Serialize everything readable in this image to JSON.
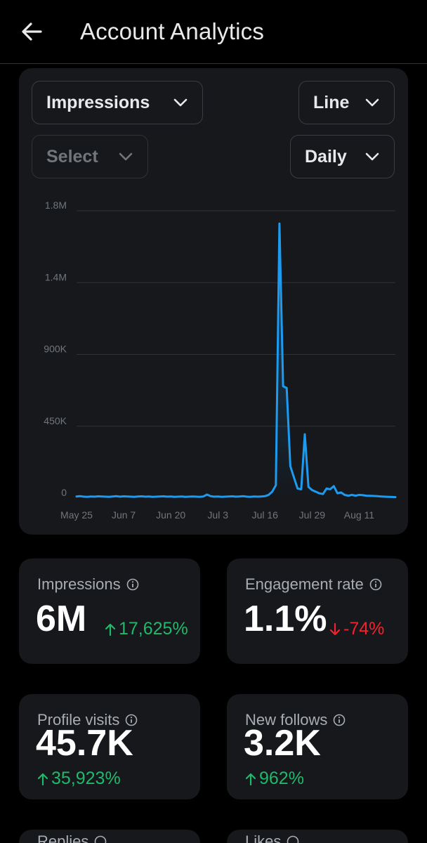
{
  "header": {
    "title": "Account Analytics",
    "back_icon": "arrow-left-icon"
  },
  "controls": {
    "metric": {
      "value": "Impressions"
    },
    "chart_type": {
      "value": "Line"
    },
    "compare": {
      "placeholder": "Select"
    },
    "interval": {
      "value": "Daily"
    }
  },
  "colors": {
    "line": "#1d9bf0",
    "positive": "#20b96a",
    "negative": "#f4212e",
    "card": "#16181c"
  },
  "chart_data": {
    "type": "line",
    "x_tick_labels": [
      "May 25",
      "Jun 7",
      "Jun 20",
      "Jul 3",
      "Jul 16",
      "Jul 29",
      "Aug 11"
    ],
    "y_tick_labels": [
      "1.8M",
      "1.4M",
      "900K",
      "450K",
      "0"
    ],
    "ylim": [
      0,
      1800000
    ],
    "grid": true,
    "series": [
      {
        "x": [
          "May 25",
          "May 26",
          "May 27",
          "May 28",
          "May 29",
          "May 30",
          "May 31",
          "Jun 1",
          "Jun 2",
          "Jun 3",
          "Jun 4",
          "Jun 5",
          "Jun 6",
          "Jun 7",
          "Jun 8",
          "Jun 9",
          "Jun 10",
          "Jun 11",
          "Jun 12",
          "Jun 13",
          "Jun 14",
          "Jun 15",
          "Jun 16",
          "Jun 17",
          "Jun 18",
          "Jun 19",
          "Jun 20",
          "Jun 21",
          "Jun 22",
          "Jun 23",
          "Jun 24",
          "Jun 25",
          "Jun 26",
          "Jun 27",
          "Jun 28",
          "Jun 29",
          "Jun 30",
          "Jul 1",
          "Jul 2",
          "Jul 3",
          "Jul 4",
          "Jul 5",
          "Jul 6",
          "Jul 7",
          "Jul 8",
          "Jul 9",
          "Jul 10",
          "Jul 11",
          "Jul 12",
          "Jul 13",
          "Jul 14",
          "Jul 15",
          "Jul 16",
          "Jul 17",
          "Jul 18",
          "Jul 19",
          "Jul 20",
          "Jul 21",
          "Jul 22",
          "Jul 23",
          "Jul 24",
          "Jul 25",
          "Jul 26",
          "Jul 27",
          "Jul 28",
          "Jul 29",
          "Jul 30",
          "Jul 31",
          "Aug 1",
          "Aug 2",
          "Aug 3",
          "Aug 4",
          "Aug 5",
          "Aug 6",
          "Aug 7",
          "Aug 8",
          "Aug 9",
          "Aug 10",
          "Aug 11",
          "Aug 12",
          "Aug 13",
          "Aug 14",
          "Aug 15",
          "Aug 16",
          "Aug 17",
          "Aug 18",
          "Aug 19",
          "Aug 20",
          "Aug 21"
        ],
        "values": [
          10000,
          12000,
          9000,
          8000,
          10000,
          9000,
          11000,
          10000,
          9000,
          8000,
          10000,
          12000,
          9000,
          11000,
          10000,
          9000,
          8000,
          10000,
          11000,
          9000,
          10000,
          8000,
          9000,
          10000,
          11000,
          9000,
          10000,
          8000,
          9000,
          10000,
          8000,
          9000,
          10000,
          9000,
          8000,
          10000,
          22000,
          12000,
          9000,
          10000,
          8000,
          9000,
          10000,
          11000,
          9000,
          10000,
          12000,
          9000,
          8000,
          10000,
          9000,
          10000,
          12000,
          20000,
          40000,
          80000,
          1720000,
          700000,
          690000,
          200000,
          130000,
          60000,
          55000,
          400000,
          70000,
          50000,
          40000,
          30000,
          25000,
          60000,
          55000,
          75000,
          30000,
          35000,
          20000,
          15000,
          20000,
          15000,
          20000,
          18000,
          15000,
          14000,
          13000,
          12000,
          10000,
          9000,
          8000,
          7000,
          6000
        ]
      }
    ]
  },
  "cards": [
    {
      "label": "Impressions",
      "value": "6M",
      "delta": "17,625%",
      "direction": "up"
    },
    {
      "label": "Engagement rate",
      "value": "1.1%",
      "delta": "-74%",
      "direction": "down"
    },
    {
      "label": "Profile visits",
      "value": "45.7K",
      "delta": "35,923%",
      "direction": "up"
    },
    {
      "label": "New follows",
      "value": "3.2K",
      "delta": "962%",
      "direction": "up"
    },
    {
      "label": "Replies"
    },
    {
      "label": "Likes"
    }
  ]
}
